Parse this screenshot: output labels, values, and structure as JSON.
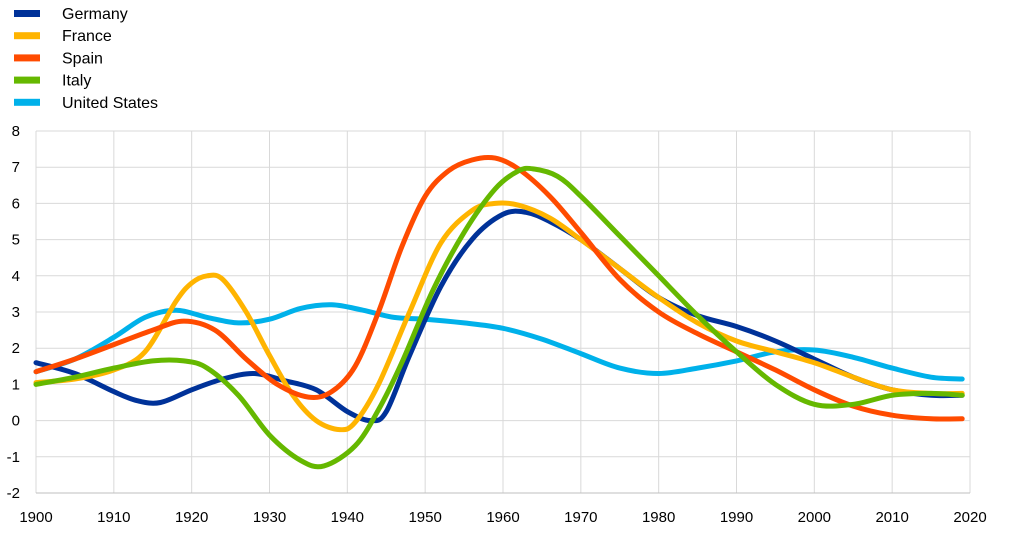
{
  "chart_data": {
    "type": "line",
    "title": "",
    "xlabel": "",
    "ylabel": "",
    "xlim": [
      1900,
      2020
    ],
    "ylim": [
      -2,
      8
    ],
    "x_ticks": [
      "1900",
      "1910",
      "1920",
      "1930",
      "1940",
      "1950",
      "1960",
      "1970",
      "1980",
      "1990",
      "2000",
      "2010",
      "2020"
    ],
    "y_ticks": [
      "8",
      "7",
      "6",
      "5",
      "4",
      "3",
      "2",
      "1",
      "0",
      "-1",
      "-2"
    ],
    "grid": "vertical and horizontal",
    "legend_position": "top-left",
    "series": [
      {
        "name": "Germany",
        "color": "#003299",
        "x": [
          1900,
          1905,
          1910,
          1913,
          1916,
          1920,
          1924,
          1928,
          1932,
          1936,
          1940,
          1943,
          1945,
          1948,
          1952,
          1956,
          1960,
          1963,
          1966,
          1970,
          1975,
          1980,
          1985,
          1990,
          1995,
          2000,
          2005,
          2010,
          2015,
          2019
        ],
        "y": [
          1.6,
          1.3,
          0.8,
          0.55,
          0.5,
          0.85,
          1.15,
          1.3,
          1.1,
          0.85,
          0.25,
          0.0,
          0.25,
          1.8,
          3.7,
          5.0,
          5.7,
          5.75,
          5.5,
          5.0,
          4.2,
          3.4,
          2.9,
          2.6,
          2.2,
          1.7,
          1.2,
          0.85,
          0.7,
          0.7
        ]
      },
      {
        "name": "France",
        "color": "#FFB400",
        "x": [
          1900,
          1905,
          1910,
          1914,
          1918,
          1920,
          1922,
          1924,
          1927,
          1930,
          1933,
          1936,
          1939,
          1941,
          1944,
          1948,
          1952,
          1956,
          1959,
          1962,
          1966,
          1970,
          1975,
          1980,
          1985,
          1990,
          1995,
          2000,
          2005,
          2010,
          2015,
          2019
        ],
        "y": [
          1.05,
          1.15,
          1.4,
          1.9,
          3.3,
          3.8,
          4.0,
          3.9,
          3.0,
          1.8,
          0.7,
          0.0,
          -0.25,
          -0.05,
          1.0,
          3.0,
          4.9,
          5.8,
          6.0,
          5.95,
          5.6,
          5.0,
          4.2,
          3.4,
          2.7,
          2.2,
          1.9,
          1.6,
          1.2,
          0.85,
          0.75,
          0.75
        ]
      },
      {
        "name": "Spain",
        "color": "#FF4B00",
        "x": [
          1900,
          1905,
          1910,
          1915,
          1919,
          1923,
          1927,
          1931,
          1935,
          1938,
          1941,
          1944,
          1947,
          1950,
          1953,
          1956,
          1959,
          1962,
          1966,
          1970,
          1975,
          1980,
          1985,
          1990,
          1995,
          2000,
          2005,
          2010,
          2015,
          2019
        ],
        "y": [
          1.35,
          1.7,
          2.1,
          2.5,
          2.75,
          2.5,
          1.7,
          1.0,
          0.65,
          0.8,
          1.5,
          3.0,
          4.8,
          6.2,
          6.9,
          7.2,
          7.25,
          6.95,
          6.2,
          5.2,
          3.9,
          3.0,
          2.4,
          1.9,
          1.4,
          0.85,
          0.4,
          0.15,
          0.05,
          0.05
        ]
      },
      {
        "name": "Italy",
        "color": "#65B800",
        "x": [
          1900,
          1905,
          1910,
          1915,
          1919,
          1922,
          1926,
          1930,
          1934,
          1937,
          1941,
          1944,
          1947,
          1951,
          1955,
          1959,
          1962,
          1964,
          1967,
          1970,
          1975,
          1980,
          1985,
          1990,
          1995,
          2000,
          2005,
          2010,
          2015,
          2019
        ],
        "y": [
          1.0,
          1.2,
          1.45,
          1.65,
          1.65,
          1.45,
          0.7,
          -0.4,
          -1.1,
          -1.25,
          -0.7,
          0.3,
          1.6,
          3.6,
          5.2,
          6.4,
          6.9,
          6.95,
          6.75,
          6.2,
          5.1,
          4.0,
          2.9,
          1.9,
          1.0,
          0.45,
          0.45,
          0.7,
          0.75,
          0.7
        ]
      },
      {
        "name": "United States",
        "color": "#00B1EA",
        "x": [
          1900,
          1905,
          1910,
          1914,
          1918,
          1922,
          1926,
          1930,
          1934,
          1938,
          1942,
          1946,
          1950,
          1955,
          1960,
          1965,
          1970,
          1975,
          1980,
          1985,
          1990,
          1995,
          2000,
          2005,
          2010,
          2015,
          2019
        ],
        "y": [
          1.35,
          1.7,
          2.3,
          2.85,
          3.05,
          2.85,
          2.7,
          2.8,
          3.1,
          3.2,
          3.05,
          2.85,
          2.8,
          2.7,
          2.55,
          2.25,
          1.85,
          1.45,
          1.3,
          1.45,
          1.65,
          1.9,
          1.95,
          1.75,
          1.45,
          1.2,
          1.15
        ]
      }
    ]
  }
}
